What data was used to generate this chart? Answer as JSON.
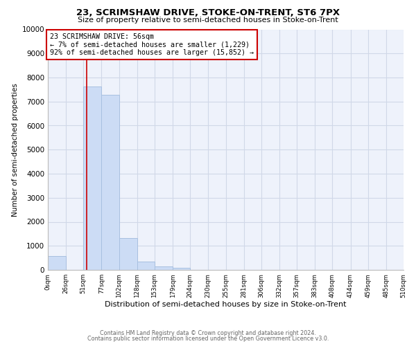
{
  "title1": "23, SCRIMSHAW DRIVE, STOKE-ON-TRENT, ST6 7PX",
  "title2": "Size of property relative to semi-detached houses in Stoke-on-Trent",
  "xlabel": "Distribution of semi-detached houses by size in Stoke-on-Trent",
  "ylabel": "Number of semi-detached properties",
  "bin_edges": [
    0,
    26,
    51,
    77,
    102,
    128,
    153,
    179,
    204,
    230,
    255,
    281,
    306,
    332,
    357,
    383,
    408,
    434,
    459,
    485,
    510
  ],
  "bar_heights": [
    570,
    0,
    7620,
    7280,
    1320,
    340,
    150,
    100,
    0,
    0,
    0,
    0,
    0,
    0,
    0,
    0,
    0,
    0,
    0,
    0
  ],
  "bar_color": "#ccdcf5",
  "bar_edge_color": "#a8c0e0",
  "vline_x": 56,
  "vline_color": "#cc0000",
  "annotation_title": "23 SCRIMSHAW DRIVE: 56sqm",
  "annotation_line1": "← 7% of semi-detached houses are smaller (1,229)",
  "annotation_line2": "92% of semi-detached houses are larger (15,852) →",
  "annotation_box_color": "#ffffff",
  "annotation_box_edge": "#cc0000",
  "ylim": [
    0,
    10000
  ],
  "yticks": [
    0,
    1000,
    2000,
    3000,
    4000,
    5000,
    6000,
    7000,
    8000,
    9000,
    10000
  ],
  "xtick_labels": [
    "0sqm",
    "26sqm",
    "51sqm",
    "77sqm",
    "102sqm",
    "128sqm",
    "153sqm",
    "179sqm",
    "204sqm",
    "230sqm",
    "255sqm",
    "281sqm",
    "306sqm",
    "332sqm",
    "357sqm",
    "383sqm",
    "408sqm",
    "434sqm",
    "459sqm",
    "485sqm",
    "510sqm"
  ],
  "footer1": "Contains HM Land Registry data © Crown copyright and database right 2024.",
  "footer2": "Contains public sector information licensed under the Open Government Licence v3.0.",
  "bg_color": "#ffffff",
  "plot_bg_color": "#eef2fb",
  "grid_color": "#d0d8e8",
  "title1_fontsize": 9.5,
  "title2_fontsize": 8.0,
  "xlabel_fontsize": 8.0,
  "ylabel_fontsize": 7.5,
  "ytick_fontsize": 7.5,
  "xtick_fontsize": 6.2,
  "footer_fontsize": 5.8,
  "annot_fontsize": 7.2
}
